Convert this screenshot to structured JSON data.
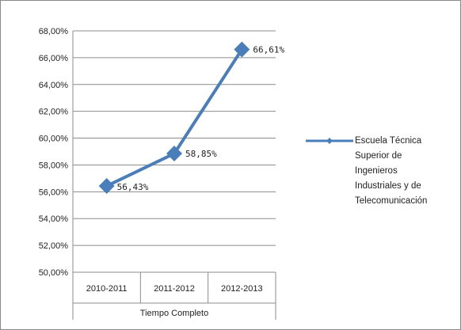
{
  "chart_data": {
    "type": "line",
    "title": "",
    "xlabel": "Tiempo Completo",
    "ylabel": "",
    "ylim": [
      0.5,
      0.68
    ],
    "y_ticks": [
      "50,00%",
      "52,00%",
      "54,00%",
      "56,00%",
      "58,00%",
      "60,00%",
      "62,00%",
      "64,00%",
      "66,00%",
      "68,00%"
    ],
    "categories": [
      "2010-2011",
      "2011-2012",
      "2012-2013"
    ],
    "series": [
      {
        "name": "Escuela Técnica Superior de Ingenieros Industriales y de Telecomunicación",
        "name_lines": [
          "Escuela Técnica",
          "Superior de",
          "Ingenieros",
          "Industriales y de",
          "Telecomunicación"
        ],
        "values": [
          0.5643,
          0.5885,
          0.6661
        ],
        "data_labels": [
          "56,43%",
          "58,85%",
          "66,61%"
        ],
        "color": "#4a7ebb",
        "marker": "diamond"
      }
    ],
    "grid": true,
    "legend_position": "right"
  }
}
